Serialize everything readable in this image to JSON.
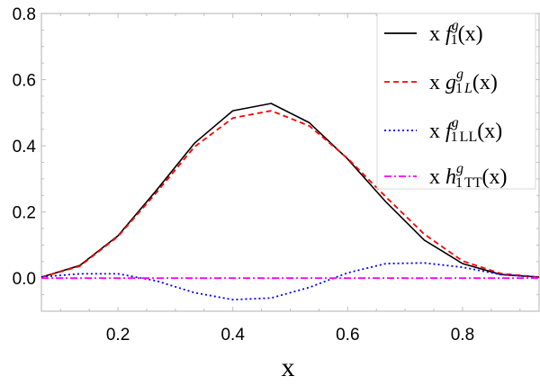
{
  "chart_data": {
    "type": "line",
    "title": "",
    "xlabel": "x",
    "ylabel": "",
    "xlim": [
      0.0667,
      0.9333
    ],
    "ylim": [
      -0.1,
      0.8
    ],
    "grid": false,
    "legend_position": "upper right",
    "x_ticks": [
      0.2,
      0.4,
      0.6,
      0.8
    ],
    "x_tick_labels": [
      "0.2",
      "0.4",
      "0.6",
      "0.8"
    ],
    "y_ticks": [
      0.0,
      0.2,
      0.4,
      0.6,
      0.8
    ],
    "y_tick_labels": [
      "0.0",
      "0.2",
      "0.4",
      "0.6",
      "0.8"
    ],
    "x": [
      0.0667,
      0.1333,
      0.2,
      0.2667,
      0.3333,
      0.4,
      0.4667,
      0.5333,
      0.6,
      0.6667,
      0.7333,
      0.8,
      0.8667,
      0.9333
    ],
    "series": [
      {
        "name": "x f1^g(x)",
        "legend": {
          "prefix": "x ",
          "func": "f",
          "sub": "1",
          "sup": "g",
          "subextra": "",
          "suffix": "(x)"
        },
        "color": "#000000",
        "dash": "",
        "values": [
          0.003,
          0.038,
          0.128,
          0.265,
          0.408,
          0.506,
          0.528,
          0.47,
          0.36,
          0.23,
          0.115,
          0.044,
          0.011,
          0.003
        ]
      },
      {
        "name": "x g1L^g(x)",
        "legend": {
          "prefix": "x ",
          "func": "g",
          "sub": "1",
          "sup": "g",
          "subextra": "L",
          "suffix": "(x)"
        },
        "color": "#ff0000",
        "dash": "6,4",
        "values": [
          0.003,
          0.036,
          0.126,
          0.258,
          0.397,
          0.484,
          0.506,
          0.46,
          0.362,
          0.245,
          0.133,
          0.052,
          0.014,
          0.003
        ]
      },
      {
        "name": "x f1LL^g(x)",
        "legend": {
          "prefix": "x ",
          "func": "f",
          "sub": "1",
          "sup": "g",
          "subextra": "LL",
          "suffix": "(x)"
        },
        "color": "#0000ff",
        "dash": "2,3",
        "values": [
          0.004,
          0.013,
          0.013,
          -0.008,
          -0.044,
          -0.065,
          -0.06,
          -0.028,
          0.016,
          0.044,
          0.046,
          0.033,
          0.011,
          0.003
        ]
      },
      {
        "name": "x h1TT^g(x)",
        "legend": {
          "prefix": "x ",
          "func": "h",
          "sub": "1",
          "sup": "g",
          "subextra": "TT",
          "suffix": "(x)"
        },
        "color": "#ff00ff",
        "dash": "8,3,2,3",
        "values": [
          0.0,
          0.0,
          0.0,
          0.0,
          0.0,
          0.0,
          0.0,
          0.0,
          0.0,
          0.0,
          0.0,
          0.0,
          0.0,
          0.0
        ]
      }
    ]
  }
}
